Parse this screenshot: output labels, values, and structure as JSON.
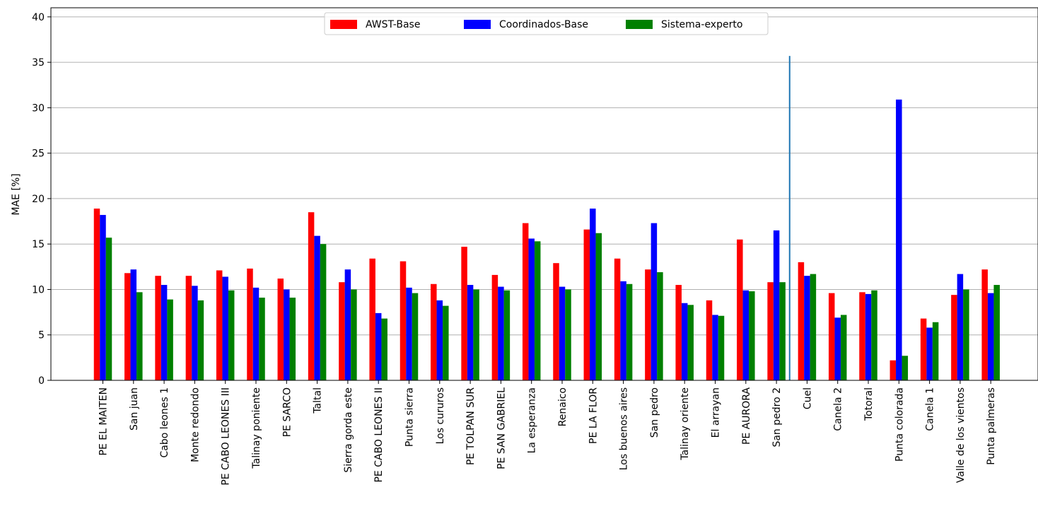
{
  "chart_data": {
    "type": "bar",
    "ylabel": "MAE [%]",
    "xlabel": "",
    "ylim": [
      0,
      41
    ],
    "yticks": [
      0,
      5,
      10,
      15,
      20,
      25,
      30,
      35,
      40
    ],
    "grid": "horizontal",
    "legend_placement": "top-center",
    "categories": [
      "PE EL MAITEN",
      "San juan",
      "Cabo leones 1",
      "Monte redondo",
      "PE CABO LEONES III",
      "Talinay poniente",
      "PE SARCO",
      "Taltal",
      "Sierra gorda este",
      "PE CABO LEONES II",
      "Punta sierra",
      "Los cururos",
      "PE TOLPAN SUR",
      "PE SAN GABRIEL",
      "La esperanza",
      "Renaico",
      "PE LA FLOR",
      "Los buenos aires",
      "San pedro",
      "Talinay oriente",
      "El arrayan",
      "PE AURORA",
      "San pedro 2",
      "Cuel",
      "Canela 2",
      "Totoral",
      "Punta colorada",
      "Canela 1",
      "Valle de los vientos",
      "Punta palmeras"
    ],
    "series": [
      {
        "name": "AWST-Base",
        "color": "#ff0000",
        "values": [
          18.9,
          11.8,
          11.5,
          11.5,
          12.1,
          12.3,
          11.2,
          18.5,
          10.8,
          13.4,
          13.1,
          10.6,
          14.7,
          11.6,
          17.3,
          12.9,
          16.6,
          13.4,
          12.2,
          10.5,
          8.8,
          15.5,
          10.8,
          13.0,
          9.6,
          9.7,
          2.2,
          6.8,
          9.4,
          12.2
        ]
      },
      {
        "name": "Coordinados-Base",
        "color": "#0000ff",
        "values": [
          18.2,
          12.2,
          10.5,
          10.4,
          11.4,
          10.2,
          10.0,
          15.9,
          12.2,
          7.4,
          10.2,
          8.8,
          10.5,
          10.3,
          15.6,
          10.3,
          18.9,
          10.9,
          17.3,
          8.5,
          7.2,
          9.9,
          16.5,
          11.5,
          6.9,
          9.5,
          30.9,
          5.8,
          11.7,
          9.6
        ]
      },
      {
        "name": "Sistema-experto",
        "color": "#008000",
        "values": [
          15.7,
          9.7,
          8.9,
          8.8,
          9.9,
          9.1,
          9.1,
          15.0,
          10.0,
          6.8,
          9.6,
          8.2,
          10.0,
          9.9,
          15.3,
          10.0,
          16.2,
          10.6,
          11.9,
          8.3,
          7.1,
          9.8,
          10.8,
          11.7,
          7.2,
          9.9,
          2.7,
          6.4,
          10.0,
          10.5
        ]
      }
    ],
    "annotations": [
      {
        "type": "vertical-line",
        "between": [
          "San pedro 2",
          "Cuel"
        ],
        "color": "#1f77b4",
        "y_range": [
          0,
          35.7
        ]
      }
    ]
  }
}
